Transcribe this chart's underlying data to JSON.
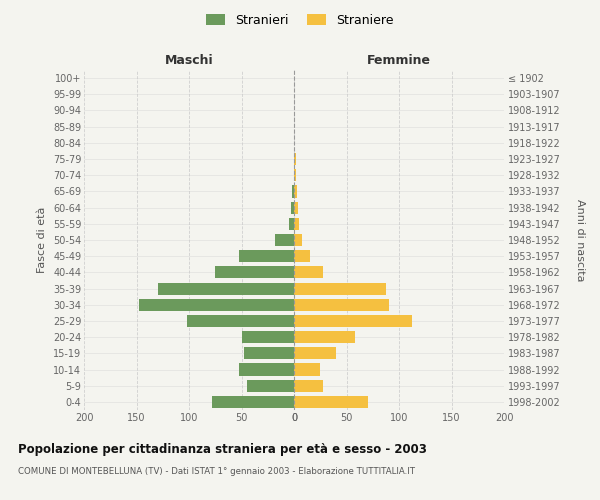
{
  "age_groups": [
    "100+",
    "95-99",
    "90-94",
    "85-89",
    "80-84",
    "75-79",
    "70-74",
    "65-69",
    "60-64",
    "55-59",
    "50-54",
    "45-49",
    "40-44",
    "35-39",
    "30-34",
    "25-29",
    "20-24",
    "15-19",
    "10-14",
    "5-9",
    "0-4"
  ],
  "birth_years": [
    "≤ 1902",
    "1903-1907",
    "1908-1912",
    "1913-1917",
    "1918-1922",
    "1923-1927",
    "1928-1932",
    "1933-1937",
    "1938-1942",
    "1943-1947",
    "1948-1952",
    "1953-1957",
    "1958-1962",
    "1963-1967",
    "1968-1972",
    "1973-1977",
    "1978-1982",
    "1983-1987",
    "1988-1992",
    "1993-1997",
    "1998-2002"
  ],
  "maschi": [
    0,
    0,
    0,
    0,
    0,
    0,
    0,
    2,
    3,
    5,
    18,
    52,
    75,
    130,
    148,
    102,
    50,
    48,
    52,
    45,
    78
  ],
  "femmine": [
    0,
    0,
    0,
    0,
    0,
    2,
    2,
    3,
    4,
    5,
    8,
    15,
    28,
    88,
    90,
    112,
    58,
    40,
    25,
    28,
    70
  ],
  "color_maschi": "#6b9a5c",
  "color_femmine": "#f5c040",
  "background_color": "#f4f4ef",
  "grid_color": "#cccccc",
  "title": "Popolazione per cittadinanza straniera per età e sesso - 2003",
  "subtitle": "COMUNE DI MONTEBELLUNA (TV) - Dati ISTAT 1° gennaio 2003 - Elaborazione TUTTITALIA.IT",
  "ylabel_left": "Fasce di età",
  "ylabel_right": "Anni di nascita",
  "label_maschi": "Maschi",
  "label_femmine": "Femmine",
  "legend_maschi": "Stranieri",
  "legend_femmine": "Straniere",
  "xlim": 200,
  "bar_height": 0.75
}
